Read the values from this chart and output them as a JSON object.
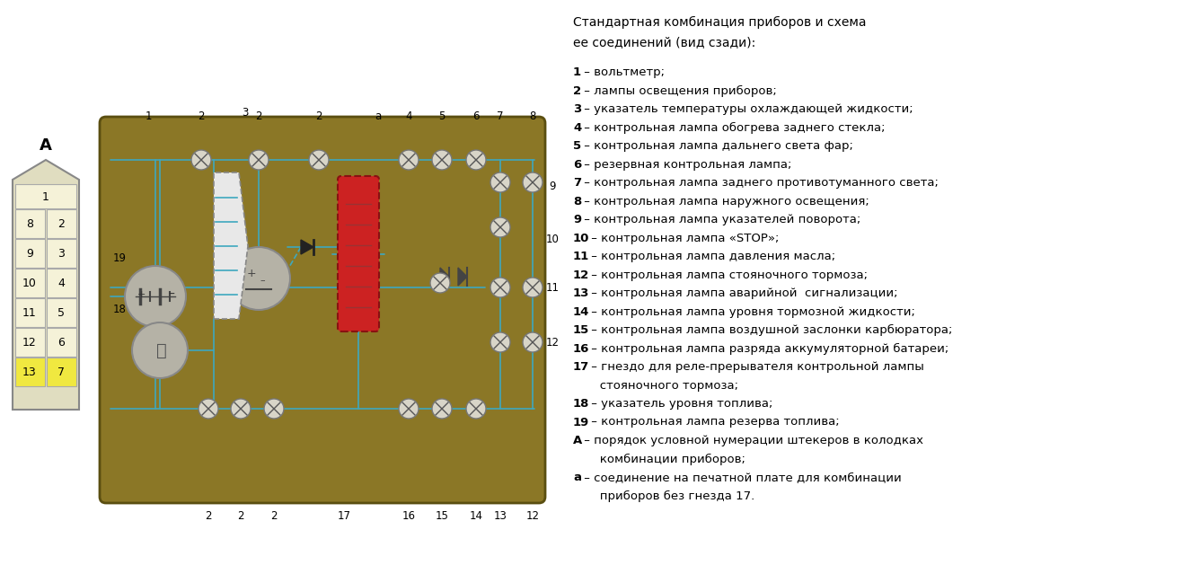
{
  "bg_color": "#ffffff",
  "board_color": "#8B7726",
  "wire_color": "#3EA8BF",
  "title_line1": "Стандартная комбинация приборов и схема",
  "title_line2": "ее соединений (вид сзади):",
  "legend_items": [
    [
      "1",
      " – вольтметр;"
    ],
    [
      "2",
      " – лампы освещения приборов;"
    ],
    [
      "3",
      " – указатель температуры охлаждающей жидкости;"
    ],
    [
      "4",
      " – контрольная лампа обогрева заднего стекла;"
    ],
    [
      "5",
      " – контрольная лампа дальнего света фар;"
    ],
    [
      "6",
      " – резервная контрольная лампа;"
    ],
    [
      "7",
      " – контрольная лампа заднего противотуманного света;"
    ],
    [
      "8",
      " – контрольная лампа наружного освещения;"
    ],
    [
      "9",
      " – контрольная лампа указателей поворота;"
    ],
    [
      "10",
      " – контрольная лампа «STOP»;"
    ],
    [
      "11",
      " – контрольная лампа давления масла;"
    ],
    [
      "12",
      " – контрольная лампа стояночного тормоза;"
    ],
    [
      "13",
      " – контрольная лампа аварийной  сигнализации;"
    ],
    [
      "14",
      " – контрольная лампа уровня тормозной жидкости;"
    ],
    [
      "15",
      " – контрольная лампа воздушной заслонки карбюратора;"
    ],
    [
      "16",
      " – контрольная лампа разряда аккумуляторной батареи;"
    ],
    [
      "17",
      " – гнездо для реле-прерывателя контрольной лампы"
    ],
    [
      "",
      "       стояночного тормоза;"
    ],
    [
      "18",
      " – указатель уровня топлива;"
    ],
    [
      "19",
      " – контрольная лампа резерва топлива;"
    ],
    [
      "А",
      " – порядок условной нумерации штекеров в колодках"
    ],
    [
      "",
      "       комбинации приборов;"
    ],
    [
      "а",
      " – соединение на печатной плате для комбинации"
    ],
    [
      "",
      "       приборов без гнезда 17."
    ]
  ]
}
